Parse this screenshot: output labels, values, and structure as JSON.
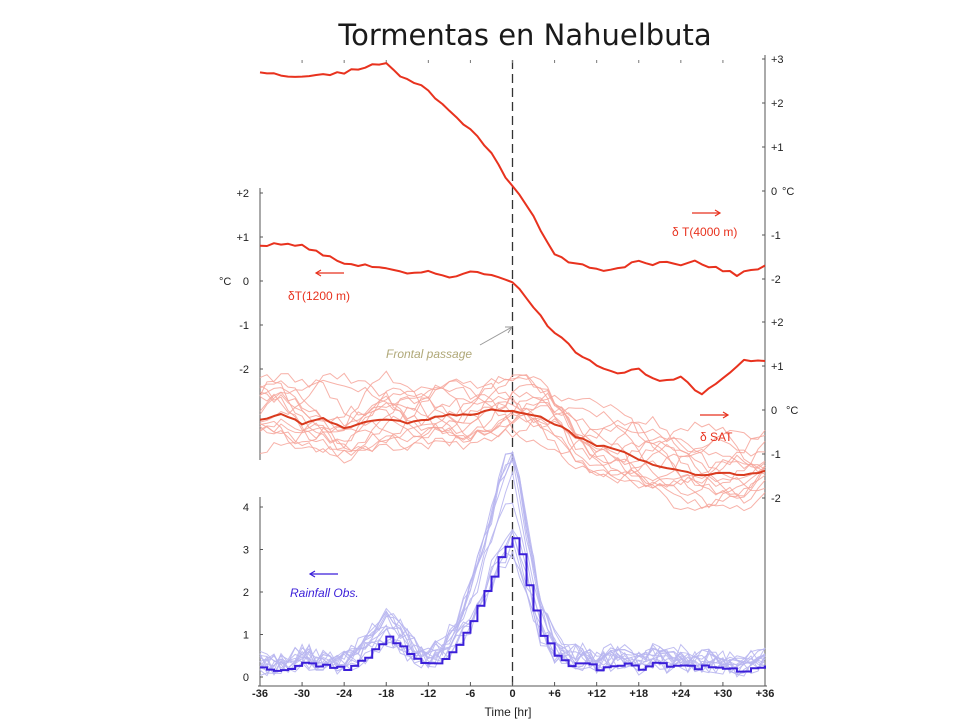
{
  "slide": {
    "title": "Tormentas en Nahuelbuta"
  },
  "chart_data": {
    "type": "line",
    "title": "Tormentas en Nahuelbuta",
    "xlabel": "Time [hr]",
    "x_ticks": [
      "-36",
      "-30",
      "-24",
      "-18",
      "-12",
      "-6",
      "0",
      "+6",
      "+12",
      "+18",
      "+24",
      "+30",
      "+36"
    ],
    "xlim": [
      -36,
      36
    ],
    "frontal_passage_hr": 0,
    "axes": {
      "t4000_right": {
        "ticks": [
          "+3",
          "+2",
          "+1",
          "0",
          "-1",
          "-2"
        ],
        "values": [
          3,
          2,
          1,
          0,
          -1,
          -2
        ],
        "unit_label": "°C"
      },
      "t1200_left": {
        "ticks": [
          "+2",
          "+1",
          "0",
          "-1",
          "-2"
        ],
        "values": [
          2,
          1,
          0,
          -1,
          -2
        ],
        "unit_label": "°C"
      },
      "sat_right": {
        "ticks": [
          "+2",
          "+1",
          "0",
          "-1",
          "-2"
        ],
        "values": [
          2,
          1,
          0,
          -1,
          -2
        ],
        "unit_label": "°C"
      },
      "rain_left": {
        "ticks": [
          "4",
          "3",
          "2",
          "1",
          "0"
        ],
        "values": [
          4,
          3,
          2,
          1,
          0
        ]
      }
    },
    "series": [
      {
        "name": "δ T(4000 m)",
        "color": "#e8321e",
        "axis": "t4000_right",
        "x": [
          -36,
          -32,
          -28,
          -24,
          -21,
          -19,
          -18,
          -16,
          -12,
          -9,
          -6,
          -3,
          -1,
          0,
          2,
          4,
          6,
          8,
          10,
          12,
          14,
          16,
          18,
          20,
          22,
          24,
          26,
          28,
          30,
          32,
          34,
          36
        ],
        "y": [
          2.7,
          2.6,
          2.6,
          2.7,
          2.8,
          2.9,
          2.9,
          2.6,
          2.3,
          1.8,
          1.4,
          0.9,
          0.3,
          0.1,
          -0.3,
          -0.9,
          -1.4,
          -1.6,
          -1.7,
          -1.8,
          -1.8,
          -1.7,
          -1.6,
          -1.7,
          -1.6,
          -1.7,
          -1.6,
          -1.7,
          -1.8,
          -1.9,
          -1.8,
          -1.7
        ]
      },
      {
        "name": "δT(1200 m)",
        "color": "#e8321e",
        "axis": "t1200_left",
        "x": [
          -36,
          -33,
          -30,
          -27,
          -24,
          -21,
          -18,
          -15,
          -12,
          -9,
          -6,
          -3,
          0,
          1,
          3,
          5,
          7,
          9,
          12,
          15,
          18,
          21,
          24,
          27,
          30,
          33,
          36
        ],
        "y": [
          0.8,
          0.85,
          0.8,
          0.6,
          0.4,
          0.35,
          0.3,
          0.15,
          0.2,
          0.1,
          0.2,
          0.15,
          0.0,
          -0.2,
          -0.6,
          -1.0,
          -1.3,
          -1.6,
          -1.9,
          -2.1,
          -2.0,
          -2.3,
          -2.2,
          -2.6,
          -2.2,
          -1.8,
          -1.8
        ]
      },
      {
        "name": "δ SAT",
        "color": "#d93a1e",
        "axis": "sat_right",
        "x": [
          -36,
          -33,
          -30,
          -27,
          -24,
          -21,
          -18,
          -15,
          -12,
          -9,
          -6,
          -3,
          0,
          3,
          6,
          9,
          12,
          15,
          18,
          21,
          24,
          27,
          30,
          33,
          36
        ],
        "y": [
          -0.2,
          -0.1,
          -0.3,
          -0.2,
          -0.4,
          -0.3,
          -0.2,
          -0.3,
          -0.2,
          -0.1,
          -0.1,
          0.0,
          0.0,
          -0.1,
          -0.3,
          -0.6,
          -0.8,
          -0.9,
          -1.1,
          -1.3,
          -1.4,
          -1.5,
          -1.4,
          -1.5,
          -1.4
        ]
      },
      {
        "name": "Rainfall Obs.",
        "color": "#3b1fd9",
        "axis": "rain_left",
        "x": [
          -36,
          -33,
          -30,
          -27,
          -24,
          -21,
          -18,
          -16,
          -14,
          -12,
          -10,
          -8,
          -6,
          -4,
          -2,
          -1,
          0,
          1,
          2,
          3,
          4,
          6,
          8,
          10,
          12,
          14,
          16,
          18,
          20,
          22,
          24,
          26,
          28,
          30,
          32,
          34,
          36
        ],
        "y": [
          0.2,
          0.15,
          0.3,
          0.25,
          0.2,
          0.5,
          0.9,
          0.7,
          0.4,
          0.3,
          0.4,
          0.8,
          1.3,
          2.0,
          2.8,
          3.1,
          3.3,
          2.9,
          2.2,
          1.6,
          1.0,
          0.5,
          0.3,
          0.3,
          0.2,
          0.3,
          0.3,
          0.2,
          0.35,
          0.25,
          0.3,
          0.2,
          0.25,
          0.2,
          0.15,
          0.2,
          0.3
        ]
      }
    ],
    "annotations": [
      "Frontal passage"
    ]
  }
}
